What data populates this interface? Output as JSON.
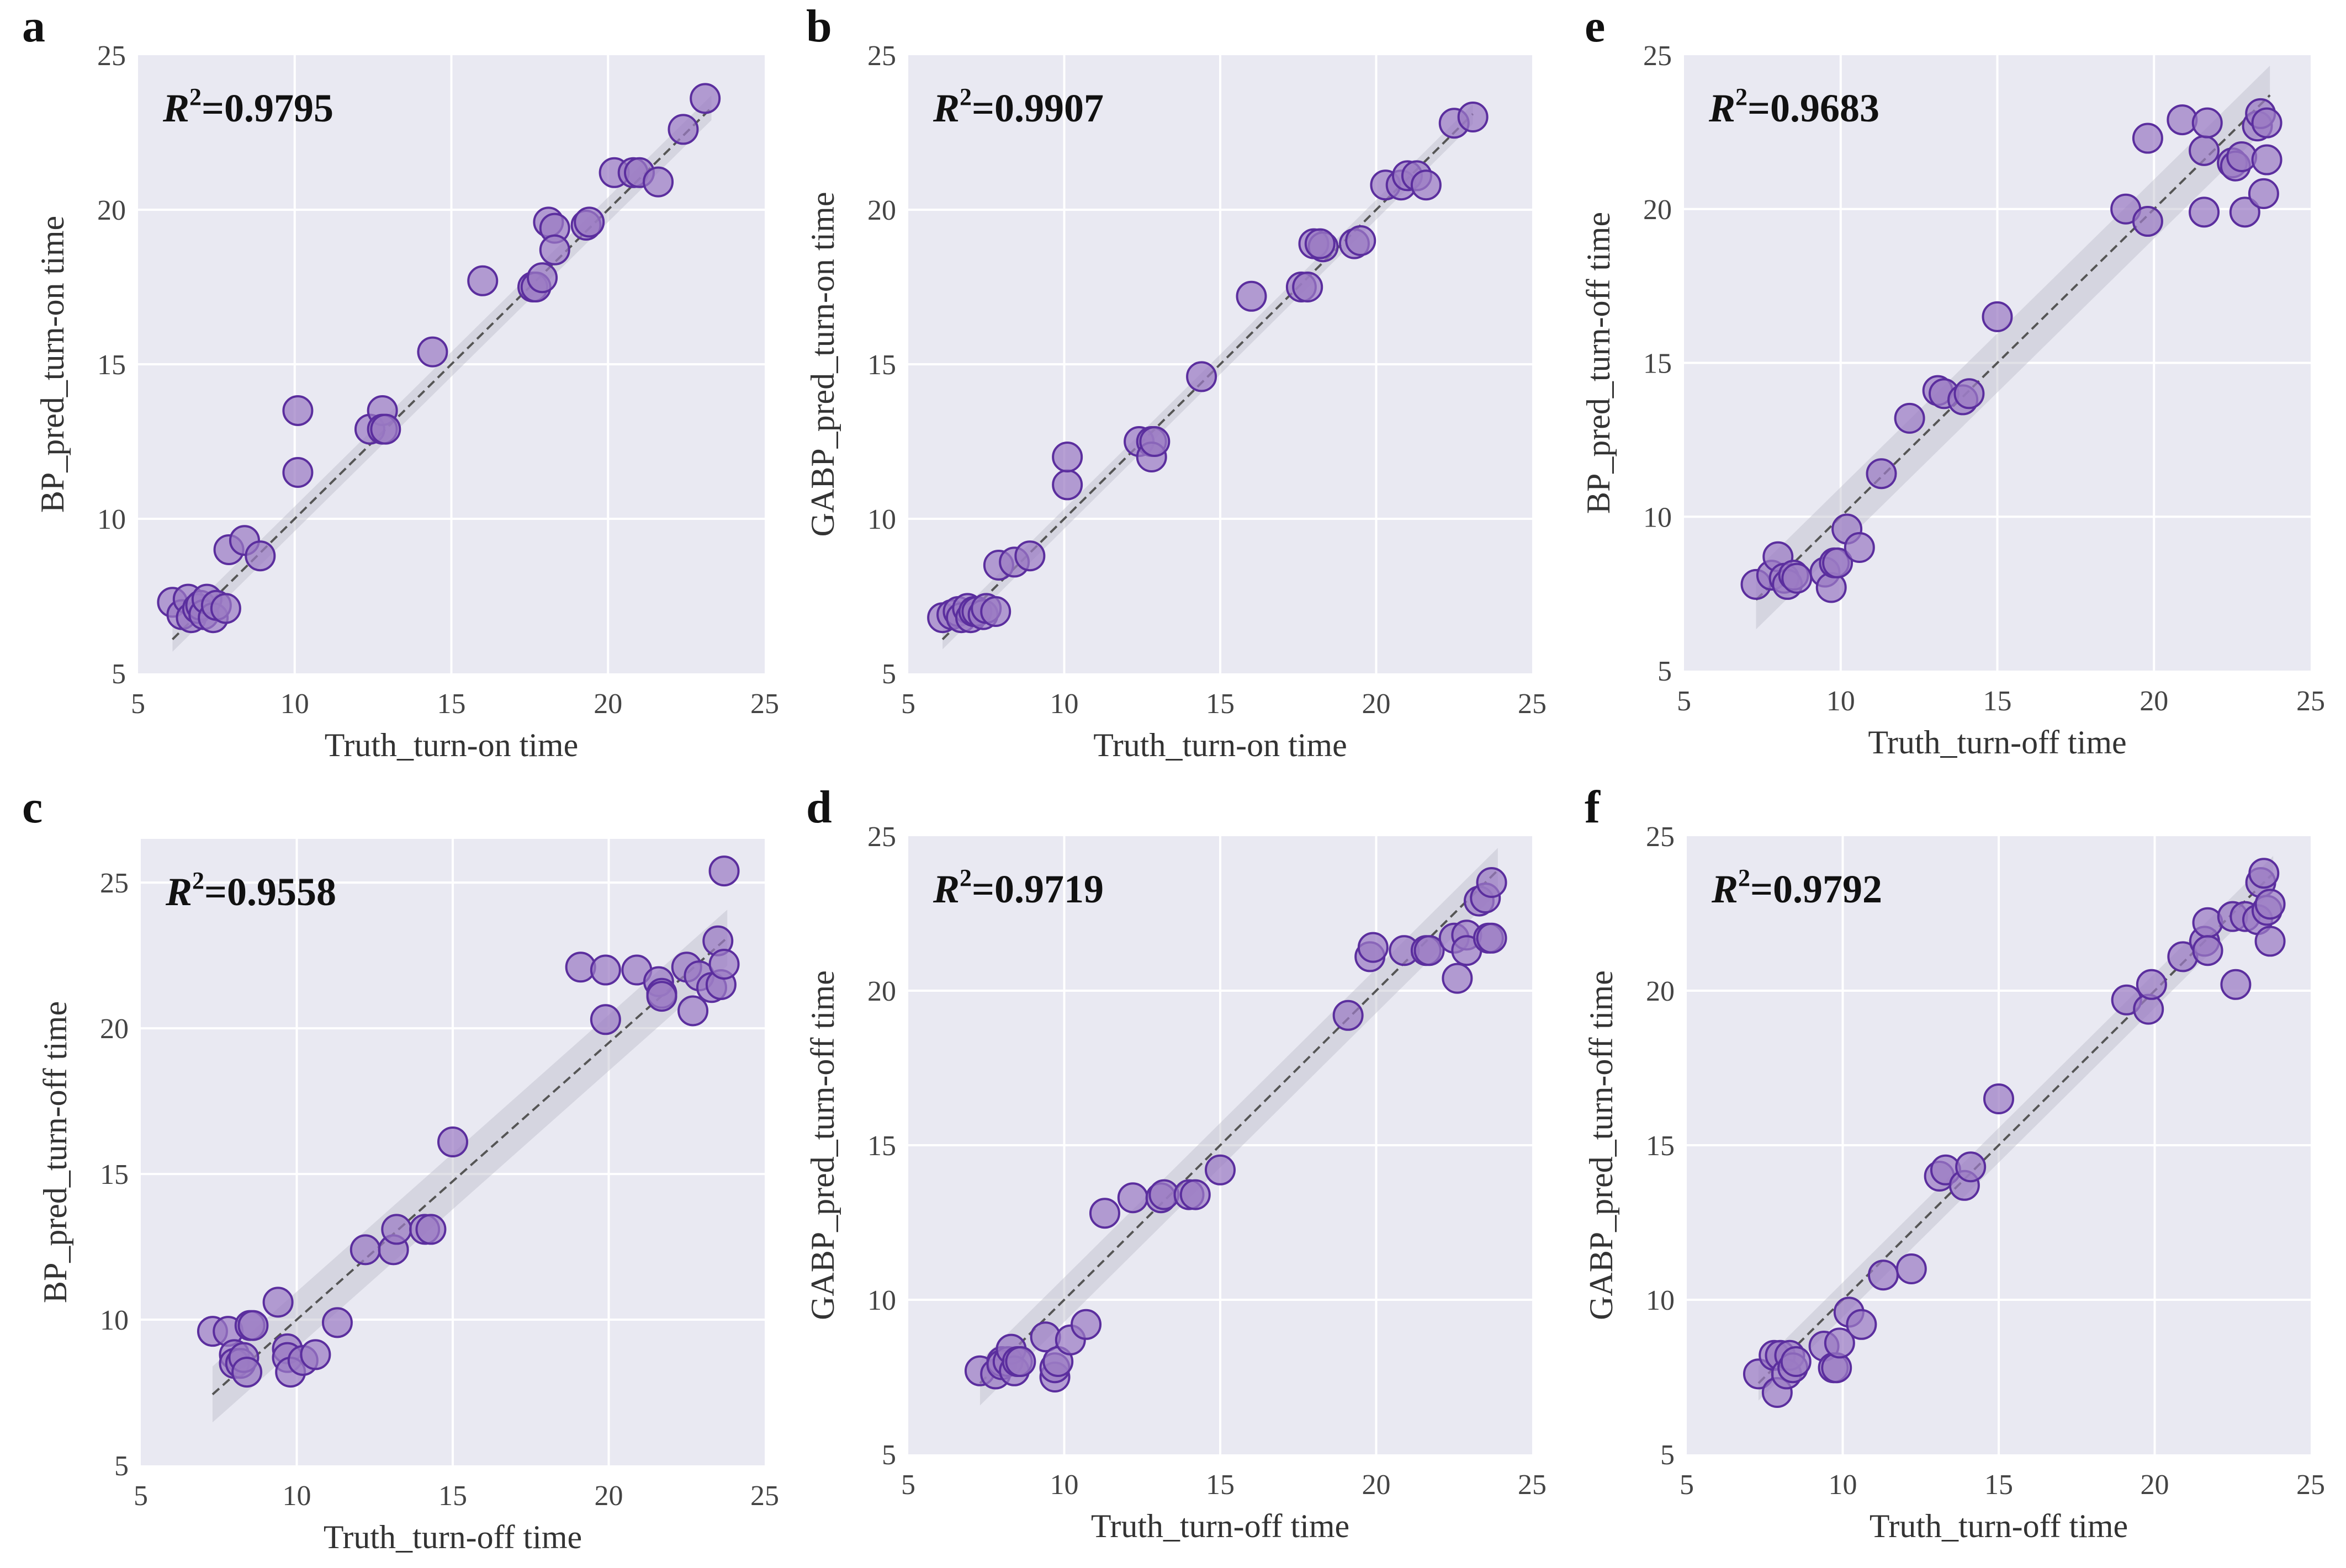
{
  "figure": {
    "r2_label": "R",
    "r2_power": "2",
    "colors": {
      "background": "#e9e9f2",
      "point_fill": "#9b7cc4",
      "point_edge": "#5b2e9e",
      "fit_line": "#555555",
      "band": "#bdbdc9"
    }
  },
  "chart_data": [
    {
      "id": "a",
      "panel_label": "a",
      "type": "scatter",
      "r2": "=0.9795",
      "xlabel": "Truth_turn-on time",
      "ylabel": "BP_pred_turn-on time",
      "xlim": [
        5,
        25
      ],
      "ylim": [
        5,
        25
      ],
      "xticks": [
        5,
        10,
        15,
        20,
        25
      ],
      "yticks": [
        5,
        10,
        15,
        20,
        25
      ],
      "fit": {
        "slope": 1.0,
        "intercept": 0.0,
        "band": 0.25,
        "x_range": [
          6.1,
          23.3
        ]
      },
      "points": [
        [
          6.1,
          7.3
        ],
        [
          6.4,
          6.9
        ],
        [
          6.6,
          7.4
        ],
        [
          6.7,
          6.8
        ],
        [
          6.9,
          7.1
        ],
        [
          7.0,
          7.2
        ],
        [
          7.1,
          6.9
        ],
        [
          7.2,
          7.4
        ],
        [
          7.4,
          6.8
        ],
        [
          7.5,
          7.2
        ],
        [
          7.8,
          7.1
        ],
        [
          7.9,
          9.0
        ],
        [
          8.4,
          9.3
        ],
        [
          8.9,
          8.8
        ],
        [
          10.1,
          11.5
        ],
        [
          10.1,
          13.5
        ],
        [
          12.4,
          12.9
        ],
        [
          12.8,
          13.5
        ],
        [
          12.8,
          12.9
        ],
        [
          12.9,
          12.9
        ],
        [
          14.4,
          15.4
        ],
        [
          16.0,
          17.7
        ],
        [
          17.6,
          17.5
        ],
        [
          17.7,
          17.5
        ],
        [
          17.9,
          17.8
        ],
        [
          18.1,
          19.6
        ],
        [
          18.3,
          19.4
        ],
        [
          18.3,
          18.7
        ],
        [
          19.3,
          19.5
        ],
        [
          19.4,
          19.6
        ],
        [
          20.2,
          21.2
        ],
        [
          20.8,
          21.2
        ],
        [
          21.0,
          21.2
        ],
        [
          21.6,
          20.9
        ],
        [
          22.4,
          22.6
        ],
        [
          23.1,
          23.6
        ]
      ]
    },
    {
      "id": "b",
      "panel_label": "b",
      "type": "scatter",
      "r2": "=0.9907",
      "xlabel": "Truth_turn-on time",
      "ylabel": "GABP_pred_turn-on time",
      "xlim": [
        5,
        25
      ],
      "ylim": [
        5,
        25
      ],
      "xticks": [
        5,
        10,
        15,
        20,
        25
      ],
      "yticks": [
        5,
        10,
        15,
        20,
        25
      ],
      "fit": {
        "slope": 1.0,
        "intercept": 0.0,
        "band": 0.2,
        "x_range": [
          6.1,
          23.1
        ]
      },
      "points": [
        [
          6.1,
          6.8
        ],
        [
          6.4,
          6.9
        ],
        [
          6.6,
          7.0
        ],
        [
          6.7,
          6.8
        ],
        [
          6.9,
          7.1
        ],
        [
          7.0,
          6.8
        ],
        [
          7.1,
          7.0
        ],
        [
          7.2,
          7.0
        ],
        [
          7.4,
          6.9
        ],
        [
          7.5,
          7.1
        ],
        [
          7.8,
          7.0
        ],
        [
          7.9,
          8.5
        ],
        [
          8.4,
          8.6
        ],
        [
          8.9,
          8.8
        ],
        [
          10.1,
          11.1
        ],
        [
          10.1,
          12.0
        ],
        [
          12.4,
          12.5
        ],
        [
          12.8,
          12.5
        ],
        [
          12.8,
          12.0
        ],
        [
          12.9,
          12.5
        ],
        [
          14.4,
          14.6
        ],
        [
          16.0,
          17.2
        ],
        [
          17.6,
          17.5
        ],
        [
          17.8,
          17.5
        ],
        [
          18.0,
          18.9
        ],
        [
          18.3,
          18.8
        ],
        [
          18.2,
          18.9
        ],
        [
          19.3,
          18.9
        ],
        [
          19.5,
          19.0
        ],
        [
          20.3,
          20.8
        ],
        [
          20.8,
          20.8
        ],
        [
          21.0,
          21.1
        ],
        [
          21.3,
          21.1
        ],
        [
          21.6,
          20.8
        ],
        [
          22.5,
          22.8
        ],
        [
          23.1,
          23.0
        ]
      ]
    },
    {
      "id": "e",
      "panel_label": "e",
      "type": "scatter",
      "r2": "=0.9683",
      "xlabel": "Truth_turn-off time",
      "ylabel": "BP_pred_turn-off time",
      "xlim": [
        5,
        25
      ],
      "ylim": [
        5,
        25
      ],
      "xticks": [
        5,
        10,
        15,
        20,
        25
      ],
      "yticks": [
        5,
        10,
        15,
        20,
        25
      ],
      "fit": {
        "slope": 1.0,
        "intercept": 0.0,
        "band": 0.6,
        "x_range": [
          7.3,
          23.7
        ]
      },
      "points": [
        [
          7.3,
          7.8
        ],
        [
          7.8,
          8.1
        ],
        [
          8.0,
          8.7
        ],
        [
          8.2,
          8.0
        ],
        [
          8.3,
          7.8
        ],
        [
          8.5,
          8.1
        ],
        [
          8.6,
          8.0
        ],
        [
          9.5,
          8.2
        ],
        [
          9.7,
          7.7
        ],
        [
          9.8,
          8.5
        ],
        [
          9.9,
          8.5
        ],
        [
          10.2,
          9.6
        ],
        [
          10.6,
          9.0
        ],
        [
          11.3,
          11.4
        ],
        [
          12.2,
          13.2
        ],
        [
          13.1,
          14.1
        ],
        [
          13.3,
          14.0
        ],
        [
          13.9,
          13.8
        ],
        [
          14.1,
          14.0
        ],
        [
          15.0,
          16.5
        ],
        [
          19.1,
          20.0
        ],
        [
          19.8,
          22.3
        ],
        [
          19.8,
          19.6
        ],
        [
          20.9,
          22.9
        ],
        [
          21.6,
          21.9
        ],
        [
          21.6,
          19.9
        ],
        [
          21.7,
          22.8
        ],
        [
          22.5,
          21.5
        ],
        [
          22.6,
          21.4
        ],
        [
          22.8,
          21.7
        ],
        [
          22.9,
          19.9
        ],
        [
          23.3,
          22.7
        ],
        [
          23.4,
          23.1
        ],
        [
          23.6,
          22.8
        ],
        [
          23.6,
          21.6
        ],
        [
          23.5,
          20.5
        ]
      ]
    },
    {
      "id": "c",
      "panel_label": "c",
      "type": "scatter",
      "r2": "=0.9558",
      "xlabel": "Truth_turn-off time",
      "ylabel": "BP_pred_turn-off time",
      "xlim": [
        5,
        25
      ],
      "ylim": [
        5,
        26.5
      ],
      "xticks": [
        5,
        10,
        15,
        20,
        25
      ],
      "yticks": [
        5,
        10,
        15,
        20,
        25
      ],
      "fit": {
        "slope": 0.95,
        "intercept": 0.5,
        "band": 0.6,
        "x_range": [
          7.3,
          23.8
        ]
      },
      "points": [
        [
          7.3,
          9.6
        ],
        [
          7.8,
          9.6
        ],
        [
          8.0,
          8.8
        ],
        [
          8.0,
          8.5
        ],
        [
          8.2,
          8.5
        ],
        [
          8.3,
          8.7
        ],
        [
          8.4,
          8.2
        ],
        [
          8.5,
          9.8
        ],
        [
          8.6,
          9.8
        ],
        [
          9.4,
          10.6
        ],
        [
          9.7,
          9.0
        ],
        [
          9.7,
          8.7
        ],
        [
          9.8,
          8.2
        ],
        [
          10.2,
          8.6
        ],
        [
          10.6,
          8.8
        ],
        [
          11.3,
          9.9
        ],
        [
          12.2,
          12.4
        ],
        [
          13.1,
          12.4
        ],
        [
          13.2,
          13.1
        ],
        [
          14.1,
          13.1
        ],
        [
          14.3,
          13.1
        ],
        [
          15.0,
          16.1
        ],
        [
          19.1,
          22.1
        ],
        [
          19.9,
          22.0
        ],
        [
          19.9,
          20.3
        ],
        [
          20.9,
          22.0
        ],
        [
          21.6,
          21.6
        ],
        [
          21.7,
          21.2
        ],
        [
          21.7,
          21.1
        ],
        [
          22.5,
          22.1
        ],
        [
          22.7,
          20.6
        ],
        [
          22.9,
          21.8
        ],
        [
          23.3,
          21.4
        ],
        [
          23.5,
          23.0
        ],
        [
          23.6,
          21.5
        ],
        [
          23.7,
          22.2
        ],
        [
          23.7,
          25.4
        ]
      ]
    },
    {
      "id": "d",
      "panel_label": "d",
      "type": "scatter",
      "r2": "=0.9719",
      "xlabel": "Truth_turn-off time",
      "ylabel": "GABP_pred_turn-off time",
      "xlim": [
        5,
        25
      ],
      "ylim": [
        5,
        25
      ],
      "xticks": [
        5,
        10,
        15,
        20,
        25
      ],
      "yticks": [
        5,
        10,
        15,
        20,
        25
      ],
      "fit": {
        "slope": 1.0,
        "intercept": 0.0,
        "band": 0.45,
        "x_range": [
          7.3,
          23.9
        ]
      },
      "points": [
        [
          7.3,
          7.7
        ],
        [
          7.8,
          7.6
        ],
        [
          8.0,
          8.0
        ],
        [
          8.0,
          7.9
        ],
        [
          8.2,
          8.0
        ],
        [
          8.3,
          8.4
        ],
        [
          8.4,
          7.7
        ],
        [
          8.5,
          8.0
        ],
        [
          8.6,
          8.0
        ],
        [
          9.4,
          8.8
        ],
        [
          9.7,
          7.5
        ],
        [
          9.7,
          7.8
        ],
        [
          9.8,
          8.0
        ],
        [
          10.2,
          8.7
        ],
        [
          10.7,
          9.2
        ],
        [
          11.3,
          12.8
        ],
        [
          12.2,
          13.3
        ],
        [
          13.1,
          13.3
        ],
        [
          13.2,
          13.4
        ],
        [
          14.0,
          13.4
        ],
        [
          14.2,
          13.4
        ],
        [
          15.0,
          14.2
        ],
        [
          19.1,
          19.2
        ],
        [
          19.8,
          21.1
        ],
        [
          19.9,
          21.4
        ],
        [
          20.9,
          21.3
        ],
        [
          21.6,
          21.3
        ],
        [
          21.7,
          21.3
        ],
        [
          22.5,
          21.7
        ],
        [
          22.6,
          20.4
        ],
        [
          22.9,
          21.8
        ],
        [
          22.9,
          21.3
        ],
        [
          23.3,
          22.9
        ],
        [
          23.5,
          23.0
        ],
        [
          23.6,
          21.7
        ],
        [
          23.7,
          21.7
        ],
        [
          23.7,
          23.5
        ]
      ]
    },
    {
      "id": "f",
      "panel_label": "f",
      "type": "scatter",
      "r2": "=0.9792",
      "xlabel": "Truth_turn-off time",
      "ylabel": "GABP_pred_turn-off time",
      "xlim": [
        5,
        25
      ],
      "ylim": [
        5,
        25
      ],
      "xticks": [
        5,
        10,
        15,
        20,
        25
      ],
      "yticks": [
        5,
        10,
        15,
        20,
        25
      ],
      "fit": {
        "slope": 1.0,
        "intercept": 0.0,
        "band": 0.35,
        "x_range": [
          7.3,
          23.8
        ]
      },
      "points": [
        [
          7.3,
          7.6
        ],
        [
          7.8,
          8.2
        ],
        [
          7.9,
          7.0
        ],
        [
          8.0,
          8.2
        ],
        [
          8.2,
          7.6
        ],
        [
          8.3,
          8.2
        ],
        [
          8.4,
          7.8
        ],
        [
          8.5,
          8.0
        ],
        [
          9.4,
          8.5
        ],
        [
          9.7,
          7.8
        ],
        [
          9.8,
          7.8
        ],
        [
          9.9,
          8.6
        ],
        [
          10.2,
          9.6
        ],
        [
          10.6,
          9.2
        ],
        [
          11.3,
          10.8
        ],
        [
          12.2,
          11.0
        ],
        [
          13.1,
          14.0
        ],
        [
          13.3,
          14.2
        ],
        [
          13.9,
          13.7
        ],
        [
          14.1,
          14.3
        ],
        [
          15.0,
          16.5
        ],
        [
          19.1,
          19.7
        ],
        [
          19.8,
          19.4
        ],
        [
          19.9,
          20.2
        ],
        [
          20.9,
          21.1
        ],
        [
          21.6,
          21.6
        ],
        [
          21.7,
          22.2
        ],
        [
          21.7,
          21.3
        ],
        [
          22.5,
          22.4
        ],
        [
          22.6,
          20.2
        ],
        [
          22.9,
          22.4
        ],
        [
          23.3,
          22.3
        ],
        [
          23.4,
          23.5
        ],
        [
          23.5,
          23.8
        ],
        [
          23.6,
          22.6
        ],
        [
          23.7,
          22.8
        ],
        [
          23.7,
          21.6
        ]
      ]
    }
  ]
}
